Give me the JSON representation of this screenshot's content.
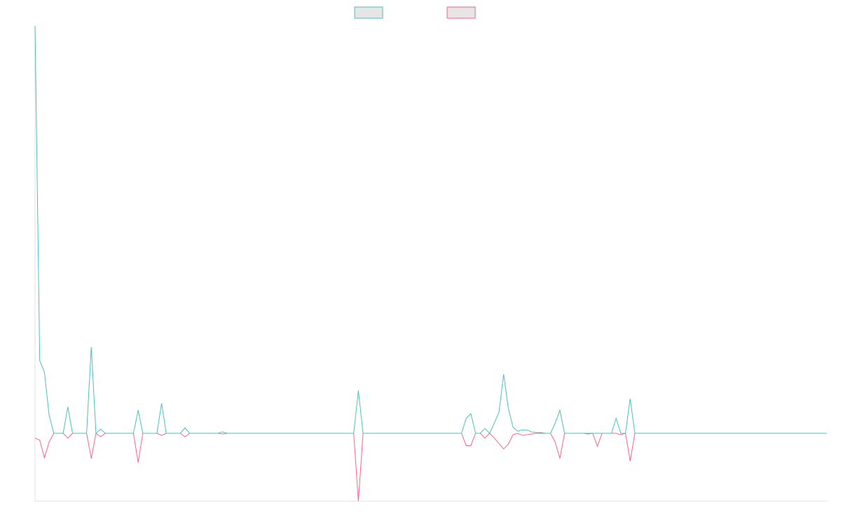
{
  "chart_data": {
    "type": "line",
    "categories": [
      null,
      null,
      null,
      null,
      null,
      null,
      null,
      null,
      null,
      null,
      null,
      null,
      null,
      null,
      null,
      null,
      null,
      null,
      null,
      null,
      null,
      null,
      null,
      null,
      null,
      null,
      null,
      null,
      null,
      null,
      null,
      null,
      null,
      null,
      null,
      null,
      null,
      null,
      null,
      null,
      null,
      null,
      null,
      null,
      null,
      null,
      null,
      null,
      null,
      null,
      null,
      null,
      null,
      null,
      null,
      null,
      null,
      null,
      null,
      null,
      null,
      null,
      null,
      null,
      null,
      null,
      null,
      null,
      null,
      null,
      null,
      null,
      null,
      null,
      null,
      null,
      null,
      null,
      null,
      null,
      null,
      null,
      null,
      null,
      null,
      null,
      null,
      null,
      null,
      null,
      null,
      null,
      null,
      null,
      null,
      null,
      null,
      null,
      null,
      null,
      null,
      null,
      null,
      null,
      null,
      null,
      null,
      null,
      null,
      null,
      null,
      null,
      null,
      null,
      null,
      null,
      null,
      null,
      null,
      null,
      null,
      null,
      null,
      null,
      null,
      null,
      null,
      null,
      null,
      null,
      null,
      null,
      null,
      null,
      null,
      null,
      null,
      null,
      null,
      null,
      null,
      null,
      null,
      null,
      null,
      null,
      null,
      null,
      null,
      null,
      null,
      null,
      null,
      null,
      null,
      null,
      null,
      null,
      null,
      null,
      null,
      null,
      null,
      null,
      null,
      null,
      null,
      null,
      null,
      null
    ],
    "series": [
      {
        "color": "#4bc0c0",
        "values": [
          60,
          10.7,
          9,
          2.7,
          0,
          0,
          0,
          3.9,
          0,
          0,
          0,
          0,
          12.7,
          0,
          0.6,
          0,
          0,
          0,
          0,
          0,
          0,
          0,
          3.4,
          0,
          0,
          0,
          0,
          4.4,
          0,
          0,
          0,
          0,
          0.8,
          0,
          0,
          0,
          0,
          0,
          0,
          0,
          0.2,
          0,
          0,
          0,
          0,
          0,
          0,
          0,
          0,
          0,
          0,
          0,
          0,
          0,
          0,
          0,
          0,
          0,
          0,
          0,
          0,
          0,
          0,
          0,
          0,
          0,
          0,
          0,
          0,
          6.3,
          0,
          0,
          0,
          0,
          0,
          0,
          0,
          0,
          0,
          0,
          0,
          0,
          0,
          0,
          0,
          0,
          0,
          0,
          0,
          0,
          0,
          0,
          2.2,
          2.9,
          0,
          0,
          0.7,
          0,
          1.5,
          3.1,
          8.7,
          3.7,
          0.9,
          0.3,
          0.5,
          0.5,
          0.2,
          0.1,
          0.1,
          0,
          0,
          1.5,
          3.4,
          0,
          0,
          0,
          0,
          0,
          0,
          0,
          0,
          0,
          0,
          0,
          2.2,
          0,
          0,
          5.1,
          0,
          0,
          0,
          0,
          0,
          0,
          0,
          0,
          0,
          0,
          0,
          0,
          0,
          0,
          0,
          0,
          0,
          0,
          0,
          0,
          0,
          0,
          0,
          0,
          0,
          0,
          0,
          0,
          0,
          0,
          0,
          0,
          0,
          0,
          0,
          0,
          0,
          0,
          0,
          0,
          0,
          0
        ]
      },
      {
        "color": "#ff6384",
        "values": [
          -0.7,
          -1,
          -3.6,
          -1.3,
          0,
          0,
          0,
          -0.7,
          0,
          0,
          0,
          0,
          -3.7,
          0,
          -0.5,
          0,
          0,
          0,
          0,
          0,
          0,
          0,
          -4.3,
          0,
          0,
          0,
          0,
          -0.3,
          0,
          0,
          0,
          0,
          -0.5,
          0,
          0,
          0,
          0,
          0,
          0,
          0,
          -0.1,
          0,
          0,
          0,
          0,
          0,
          0,
          0,
          0,
          0,
          0,
          0,
          0,
          0,
          0,
          0,
          0,
          0,
          0,
          0,
          0,
          0,
          0,
          0,
          0,
          0,
          0,
          0,
          0,
          -10,
          0,
          0,
          0,
          0,
          0,
          0,
          0,
          0,
          0,
          0,
          0,
          0,
          0,
          0,
          0,
          0,
          0,
          0,
          0,
          0,
          0,
          0,
          -1.8,
          -1.8,
          0,
          0,
          -0.7,
          0,
          -0.7,
          -1.5,
          -2.3,
          -1.6,
          -0.2,
          0,
          -0.3,
          -0.2,
          -0.1,
          0,
          0,
          0,
          0,
          -1.3,
          -3.7,
          0,
          0,
          0,
          0,
          0,
          -0.1,
          0,
          -1.9,
          0,
          0,
          0,
          0,
          -0.2,
          0,
          -4.1,
          0,
          0,
          0,
          0,
          0,
          0,
          0,
          0,
          0,
          0,
          0,
          0,
          0,
          0,
          0,
          0,
          0,
          0,
          0,
          0,
          0,
          0,
          0,
          0,
          0,
          0,
          0,
          0,
          0,
          0,
          0,
          0,
          0,
          0,
          0,
          0,
          0,
          0,
          0,
          0,
          0,
          0
        ]
      }
    ],
    "ylim": [
      -10,
      60
    ]
  }
}
